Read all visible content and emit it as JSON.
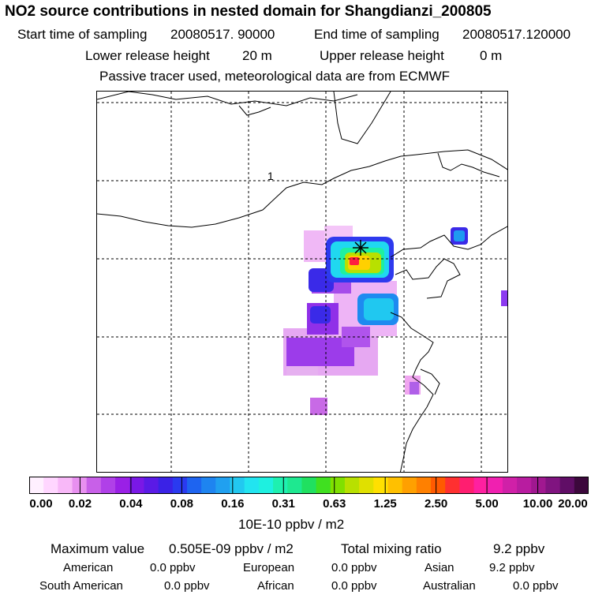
{
  "title": "NO2 source contributions in nested domain for Shangdianzi_200805",
  "header": {
    "start_label": "Start time of sampling",
    "start_value": "20080517. 90000",
    "end_label": "End time of sampling",
    "end_value": "20080517.120000",
    "lower_label": "Lower release height",
    "lower_value": "20 m",
    "upper_label": "Upper release height",
    "upper_value": "0 m",
    "tracer_note": "Passive tracer used, meteorological data are from ECMWF"
  },
  "map": {
    "contour_label": "1",
    "receptor_marker": "receptor-star-icon"
  },
  "chart_data": {
    "type": "heatmap",
    "title": "NO2 source contributions in nested domain for Shangdianzi_200805",
    "colorbar_ticks": [
      "0.00",
      "0.02",
      "0.04",
      "0.08",
      "0.16",
      "0.31",
      "0.63",
      "1.25",
      "2.50",
      "5.00",
      "10.00",
      "20.00"
    ],
    "colorbar_units": "10E-10 ppbv / m2",
    "colorbar_colors": [
      "#fff0ff",
      "#ffd6ff",
      "#f8b8f8",
      "#e890f0",
      "#c860e8",
      "#b040e8",
      "#9a20e6",
      "#7a18e6",
      "#5a1ae6",
      "#3a22e6",
      "#2a3af0",
      "#1e64f0",
      "#1e84f0",
      "#20a0f0",
      "#22c8f0",
      "#22e4f0",
      "#1ef0e0",
      "#1ef0b0",
      "#1ee890",
      "#20e060",
      "#40e020",
      "#80e000",
      "#b8e000",
      "#e0e000",
      "#ffe000",
      "#ffc000",
      "#ffa000",
      "#ff8000",
      "#ff5a00",
      "#ff3030",
      "#ff1e70",
      "#ff20a0",
      "#f020b0",
      "#d020a8",
      "#b81ca0",
      "#a01890",
      "#801480",
      "#600e66",
      "#3c083c"
    ],
    "max_value_text": "0.505E-09 ppbv / m2",
    "total_mixing_ratio": 9.2,
    "source_regions": {
      "American": 0.0,
      "European": 0.0,
      "Asian": 9.2,
      "South American": 0.0,
      "African": 0.0,
      "Australian": 0.0
    }
  },
  "footer": {
    "max_label": "Maximum value",
    "max_value": "0.505E-09 ppbv / m2",
    "total_label": "Total mixing ratio",
    "total_value": "9.2 ppbv",
    "regions": [
      {
        "name": "American",
        "value": "0.0 ppbv"
      },
      {
        "name": "European",
        "value": "0.0 ppbv"
      },
      {
        "name": "Asian",
        "value": "9.2 ppbv"
      },
      {
        "name": "South American",
        "value": "0.0 ppbv"
      },
      {
        "name": "African",
        "value": "0.0 ppbv"
      },
      {
        "name": "Australian",
        "value": "0.0 ppbv"
      }
    ]
  }
}
